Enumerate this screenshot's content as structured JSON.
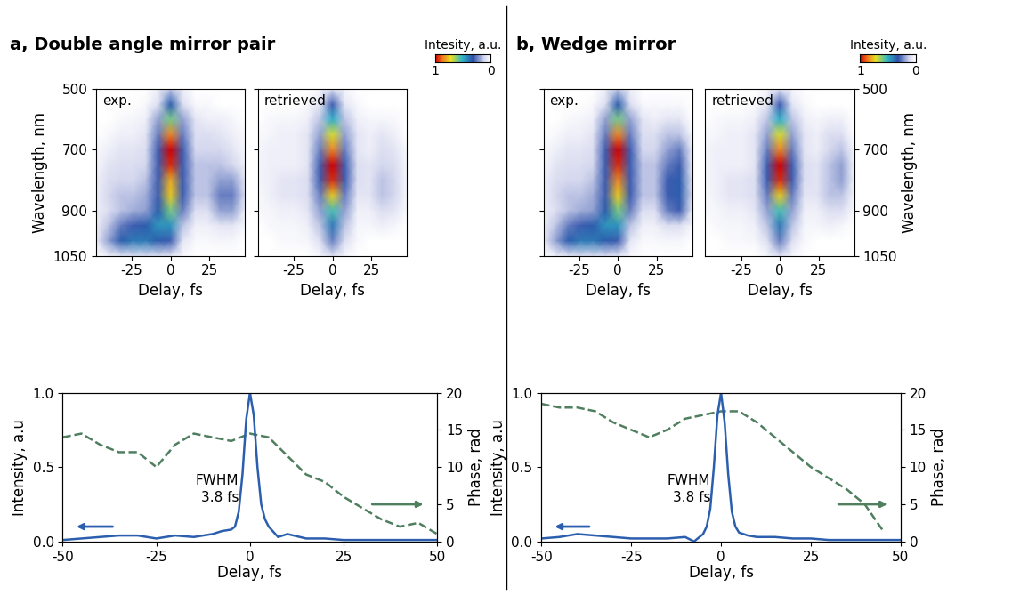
{
  "chart_data": [
    {
      "type": "heatmap",
      "panel": "a, Double angle mirror pair",
      "annotation": "exp.",
      "xlabel": "Delay, fs",
      "ylabel": "Wavelength, nm",
      "x": [
        -48,
        -40,
        -32,
        -24,
        -16,
        -8,
        0,
        8,
        16,
        24,
        32,
        40,
        48
      ],
      "y": [
        500,
        550,
        600,
        650,
        700,
        750,
        800,
        850,
        900,
        950,
        1000,
        1050
      ],
      "xlim": [
        -48,
        48
      ],
      "ylim": [
        1050,
        500
      ],
      "xticks": [
        -25,
        0,
        25
      ],
      "yticks": [
        500,
        700,
        900,
        1050
      ],
      "colorbar_range": [
        1,
        0
      ],
      "values": [
        [
          0,
          0,
          0,
          0,
          0,
          0.05,
          0.15,
          0.05,
          0,
          0,
          0,
          0,
          0
        ],
        [
          0,
          0,
          0,
          0,
          0.02,
          0.1,
          0.35,
          0.1,
          0.02,
          0.02,
          0,
          0,
          0
        ],
        [
          0,
          0,
          0.02,
          0.03,
          0.05,
          0.2,
          0.6,
          0.2,
          0.08,
          0.05,
          0.05,
          0.03,
          0
        ],
        [
          0,
          0.02,
          0.05,
          0.05,
          0.08,
          0.25,
          0.85,
          0.25,
          0.1,
          0.1,
          0.08,
          0.05,
          0.02
        ],
        [
          0.02,
          0.05,
          0.08,
          0.08,
          0.1,
          0.3,
          1.0,
          0.3,
          0.12,
          0.12,
          0.12,
          0.08,
          0.03
        ],
        [
          0.03,
          0.08,
          0.1,
          0.1,
          0.12,
          0.3,
          0.95,
          0.3,
          0.15,
          0.15,
          0.15,
          0.12,
          0.05
        ],
        [
          0.05,
          0.1,
          0.12,
          0.12,
          0.15,
          0.3,
          0.8,
          0.3,
          0.15,
          0.15,
          0.2,
          0.2,
          0.08
        ],
        [
          0.05,
          0.12,
          0.15,
          0.15,
          0.18,
          0.3,
          0.75,
          0.3,
          0.15,
          0.15,
          0.25,
          0.25,
          0.1
        ],
        [
          0.05,
          0.1,
          0.15,
          0.18,
          0.2,
          0.35,
          0.6,
          0.25,
          0.1,
          0.1,
          0.2,
          0.2,
          0.05
        ],
        [
          0.05,
          0.15,
          0.25,
          0.3,
          0.35,
          0.45,
          0.45,
          0.15,
          0.05,
          0.05,
          0.08,
          0.08,
          0.03
        ],
        [
          0.05,
          0.2,
          0.35,
          0.4,
          0.4,
          0.35,
          0.3,
          0.08,
          0.02,
          0.02,
          0.03,
          0.03,
          0
        ],
        [
          0,
          0.05,
          0.08,
          0.1,
          0.1,
          0.1,
          0.08,
          0.02,
          0,
          0,
          0,
          0,
          0
        ]
      ]
    },
    {
      "type": "heatmap",
      "annotation": "retrieved",
      "tick_labels": "x",
      "xlabel": "Delay, fs",
      "x": [
        -48,
        -40,
        -32,
        -24,
        -16,
        -8,
        0,
        8,
        16,
        24,
        32,
        40,
        48
      ],
      "y": [
        500,
        550,
        600,
        650,
        700,
        750,
        800,
        850,
        900,
        950,
        1000,
        1050
      ],
      "xlim": [
        -48,
        48
      ],
      "ylim": [
        1050,
        500
      ],
      "xticks": [
        -25,
        0,
        25
      ],
      "yticks": [
        500,
        700,
        900,
        1050
      ],
      "colorbar_range": [
        1,
        0
      ],
      "colorbar_ticks": [
        1,
        0
      ],
      "colorbar_label": "Intesity, a.u.",
      "values": [
        [
          0,
          0,
          0,
          0,
          0,
          0.03,
          0.1,
          0.03,
          0,
          0,
          0,
          0,
          0
        ],
        [
          0,
          0,
          0,
          0,
          0.02,
          0.08,
          0.3,
          0.08,
          0.02,
          0,
          0,
          0,
          0
        ],
        [
          0,
          0.02,
          0.03,
          0.03,
          0.05,
          0.15,
          0.5,
          0.15,
          0.05,
          0.03,
          0.03,
          0.02,
          0
        ],
        [
          0.02,
          0.03,
          0.05,
          0.05,
          0.08,
          0.2,
          0.7,
          0.2,
          0.08,
          0.05,
          0.08,
          0.05,
          0
        ],
        [
          0.03,
          0.05,
          0.05,
          0.05,
          0.08,
          0.25,
          0.85,
          0.25,
          0.08,
          0.05,
          0.1,
          0.08,
          0.02
        ],
        [
          0.03,
          0.05,
          0.05,
          0.05,
          0.08,
          0.3,
          1.0,
          0.3,
          0.1,
          0.08,
          0.12,
          0.1,
          0.03
        ],
        [
          0.03,
          0.05,
          0.08,
          0.08,
          0.1,
          0.3,
          0.95,
          0.3,
          0.1,
          0.08,
          0.15,
          0.12,
          0.03
        ],
        [
          0.02,
          0.05,
          0.08,
          0.08,
          0.1,
          0.25,
          0.75,
          0.25,
          0.08,
          0.08,
          0.15,
          0.12,
          0.03
        ],
        [
          0.02,
          0.03,
          0.05,
          0.05,
          0.08,
          0.2,
          0.55,
          0.2,
          0.05,
          0.05,
          0.1,
          0.08,
          0.02
        ],
        [
          0,
          0.02,
          0.03,
          0.03,
          0.05,
          0.15,
          0.4,
          0.15,
          0.03,
          0.03,
          0.05,
          0.03,
          0
        ],
        [
          0,
          0,
          0.02,
          0.02,
          0.03,
          0.1,
          0.25,
          0.1,
          0.02,
          0,
          0,
          0,
          0
        ],
        [
          0,
          0,
          0,
          0,
          0,
          0.03,
          0.1,
          0.03,
          0,
          0,
          0,
          0,
          0
        ]
      ]
    },
    {
      "type": "line",
      "xlabel": "Delay, fs",
      "ylabel": "Intensity, a.u",
      "y2label": "Phase, rad",
      "annotation": "FWHM\n3.8 fs",
      "xlim": [
        -50,
        50
      ],
      "xticks": [
        -50,
        -25,
        0,
        25,
        50
      ],
      "ylim": [
        0,
        1
      ],
      "yticks": [
        {
          "value": 0,
          "label": "0.0"
        },
        0.5,
        {
          "value": 1,
          "label": "1.0"
        }
      ],
      "y2lim": [
        0,
        20
      ],
      "y2ticks": [
        0,
        5,
        10,
        15,
        20
      ],
      "series": [
        {
          "color": "#2b5fae",
          "line_style": "solid",
          "x": [
            -50,
            -45,
            -40,
            -35,
            -30,
            -25,
            -20,
            -15,
            -10,
            -7.5,
            -5,
            -4,
            -3,
            -2,
            -1,
            0,
            1,
            2,
            3,
            4,
            5,
            7.5,
            10,
            15,
            20,
            25,
            30,
            35,
            40,
            45,
            50
          ],
          "values": [
            0.01,
            0.02,
            0.03,
            0.04,
            0.04,
            0.02,
            0.04,
            0.03,
            0.05,
            0.07,
            0.08,
            0.1,
            0.2,
            0.45,
            0.82,
            1.0,
            0.85,
            0.5,
            0.25,
            0.15,
            0.1,
            0.03,
            0.05,
            0.02,
            0.02,
            0.01,
            0.01,
            0.01,
            0.01,
            0.01,
            0.01
          ]
        },
        {
          "color": "#4f7f5f",
          "line_style": "dashed",
          "axis": "y2",
          "x": [
            -50,
            -45,
            -40,
            -35,
            -30,
            -25,
            -20,
            -15,
            -10,
            -5,
            0,
            5,
            10,
            15,
            20,
            25,
            30,
            35,
            40,
            45,
            50
          ],
          "values": [
            14,
            14.5,
            13,
            12,
            12,
            10,
            13,
            14.5,
            14,
            13.5,
            14.5,
            14,
            11.5,
            9,
            8,
            6,
            4.5,
            3,
            2,
            2.5,
            1
          ]
        }
      ]
    },
    {
      "type": "heatmap",
      "panel": "b, Wedge mirror",
      "annotation": "exp.",
      "tick_labels": "x",
      "xlabel": "Delay, fs",
      "x": [
        -48,
        -40,
        -32,
        -24,
        -16,
        -8,
        0,
        8,
        16,
        24,
        32,
        40,
        48
      ],
      "y": [
        500,
        550,
        600,
        650,
        700,
        750,
        800,
        850,
        900,
        950,
        1000,
        1050
      ],
      "xlim": [
        -48,
        48
      ],
      "ylim": [
        1050,
        500
      ],
      "xticks": [
        -25,
        0,
        25
      ],
      "yticks": [
        500,
        700,
        900,
        1050
      ],
      "colorbar_range": [
        1,
        0
      ],
      "values": [
        [
          0,
          0,
          0,
          0,
          0,
          0.05,
          0.15,
          0.05,
          0,
          0,
          0,
          0,
          0
        ],
        [
          0,
          0,
          0,
          0,
          0.02,
          0.1,
          0.35,
          0.1,
          0.02,
          0.02,
          0.02,
          0.02,
          0
        ],
        [
          0,
          0,
          0.02,
          0.03,
          0.05,
          0.2,
          0.6,
          0.2,
          0.08,
          0.05,
          0.08,
          0.08,
          0
        ],
        [
          0,
          0.02,
          0.05,
          0.05,
          0.08,
          0.25,
          0.85,
          0.25,
          0.1,
          0.1,
          0.15,
          0.15,
          0.02
        ],
        [
          0.02,
          0.05,
          0.08,
          0.08,
          0.1,
          0.3,
          1.0,
          0.3,
          0.12,
          0.12,
          0.2,
          0.25,
          0.05
        ],
        [
          0.03,
          0.08,
          0.1,
          0.1,
          0.12,
          0.3,
          0.95,
          0.3,
          0.15,
          0.15,
          0.25,
          0.3,
          0.05
        ],
        [
          0.05,
          0.1,
          0.12,
          0.12,
          0.15,
          0.3,
          0.85,
          0.3,
          0.15,
          0.15,
          0.3,
          0.35,
          0.08
        ],
        [
          0.05,
          0.12,
          0.15,
          0.15,
          0.18,
          0.3,
          0.75,
          0.3,
          0.15,
          0.15,
          0.3,
          0.35,
          0.1
        ],
        [
          0.05,
          0.1,
          0.15,
          0.18,
          0.2,
          0.35,
          0.6,
          0.25,
          0.1,
          0.1,
          0.25,
          0.3,
          0.05
        ],
        [
          0.05,
          0.15,
          0.25,
          0.3,
          0.35,
          0.45,
          0.45,
          0.15,
          0.05,
          0.05,
          0.1,
          0.1,
          0.03
        ],
        [
          0.05,
          0.2,
          0.35,
          0.4,
          0.4,
          0.35,
          0.3,
          0.08,
          0.02,
          0.02,
          0.03,
          0.03,
          0
        ],
        [
          0,
          0.05,
          0.08,
          0.1,
          0.1,
          0.1,
          0.08,
          0.02,
          0,
          0,
          0,
          0,
          0
        ]
      ]
    },
    {
      "type": "heatmap",
      "annotation": "retrieved",
      "xlabel": "Delay, fs",
      "ylabel": "Wavelength, nm",
      "x": [
        -48,
        -40,
        -32,
        -24,
        -16,
        -8,
        0,
        8,
        16,
        24,
        32,
        40,
        48
      ],
      "y": [
        500,
        550,
        600,
        650,
        700,
        750,
        800,
        850,
        900,
        950,
        1000,
        1050
      ],
      "xlim": [
        -48,
        48
      ],
      "ylim": [
        1050,
        500
      ],
      "xticks": [
        -25,
        0,
        25
      ],
      "yticks": [
        500,
        700,
        900,
        1050
      ],
      "colorbar_range": [
        1,
        0
      ],
      "colorbar_ticks": [
        1,
        0
      ],
      "colorbar_label": "Intesity, a.u.",
      "values": [
        [
          0,
          0,
          0,
          0,
          0,
          0.03,
          0.1,
          0.03,
          0,
          0,
          0,
          0,
          0
        ],
        [
          0,
          0,
          0,
          0,
          0.02,
          0.08,
          0.3,
          0.08,
          0.02,
          0,
          0,
          0,
          0
        ],
        [
          0,
          0.02,
          0.03,
          0.03,
          0.05,
          0.15,
          0.5,
          0.15,
          0.05,
          0.03,
          0.05,
          0.05,
          0
        ],
        [
          0.02,
          0.03,
          0.05,
          0.05,
          0.08,
          0.2,
          0.7,
          0.2,
          0.08,
          0.05,
          0.1,
          0.1,
          0
        ],
        [
          0.03,
          0.05,
          0.05,
          0.05,
          0.08,
          0.25,
          0.85,
          0.25,
          0.08,
          0.05,
          0.12,
          0.15,
          0.02
        ],
        [
          0.03,
          0.05,
          0.05,
          0.05,
          0.08,
          0.3,
          1.0,
          0.3,
          0.1,
          0.08,
          0.15,
          0.2,
          0.03
        ],
        [
          0.03,
          0.05,
          0.08,
          0.08,
          0.1,
          0.3,
          0.95,
          0.3,
          0.1,
          0.08,
          0.15,
          0.2,
          0.03
        ],
        [
          0.02,
          0.05,
          0.08,
          0.08,
          0.1,
          0.25,
          0.75,
          0.25,
          0.08,
          0.08,
          0.15,
          0.15,
          0.03
        ],
        [
          0.02,
          0.03,
          0.05,
          0.05,
          0.08,
          0.2,
          0.55,
          0.2,
          0.05,
          0.05,
          0.1,
          0.1,
          0.02
        ],
        [
          0,
          0.02,
          0.03,
          0.03,
          0.05,
          0.15,
          0.4,
          0.15,
          0.03,
          0.03,
          0.05,
          0.03,
          0
        ],
        [
          0,
          0,
          0.02,
          0.02,
          0.03,
          0.1,
          0.25,
          0.1,
          0.02,
          0,
          0,
          0,
          0
        ],
        [
          0,
          0,
          0,
          0,
          0,
          0.03,
          0.1,
          0.03,
          0,
          0,
          0,
          0,
          0
        ]
      ]
    },
    {
      "type": "line",
      "xlabel": "Delay, fs",
      "ylabel": "Intensity, a.u",
      "y2label": "Phase, rad",
      "annotation": "FWHM\n3.8 fs",
      "xlim": [
        -50,
        50
      ],
      "xticks": [
        -50,
        -25,
        0,
        25,
        50
      ],
      "ylim": [
        0,
        1
      ],
      "yticks": [
        {
          "value": 0,
          "label": "0.0"
        },
        0.5,
        {
          "value": 1,
          "label": "1.0"
        }
      ],
      "y2lim": [
        0,
        20
      ],
      "y2ticks": [
        0,
        5,
        10,
        15,
        20
      ],
      "series": [
        {
          "color": "#2b5fae",
          "line_style": "solid",
          "x": [
            -50,
            -45,
            -40,
            -35,
            -30,
            -25,
            -20,
            -15,
            -10,
            -7.5,
            -5,
            -4,
            -3,
            -2,
            -1,
            0,
            1,
            2,
            3,
            4,
            5,
            7.5,
            10,
            15,
            20,
            25,
            30,
            35,
            40,
            45,
            50
          ],
          "values": [
            0.02,
            0.03,
            0.05,
            0.04,
            0.03,
            0.02,
            0.02,
            0.02,
            0.03,
            0.0,
            0.05,
            0.1,
            0.22,
            0.5,
            0.85,
            1.0,
            0.8,
            0.45,
            0.2,
            0.1,
            0.06,
            0.04,
            0.03,
            0.03,
            0.02,
            0.02,
            0.01,
            0.01,
            0.01,
            0.01,
            0.01
          ]
        },
        {
          "color": "#4f7f5f",
          "line_style": "dashed",
          "axis": "y2",
          "x": [
            -50,
            -45,
            -40,
            -35,
            -30,
            -25,
            -20,
            -15,
            -10,
            -5,
            0,
            5,
            10,
            15,
            20,
            25,
            30,
            35,
            40,
            45
          ],
          "values": [
            18.5,
            18,
            18,
            17.5,
            16,
            15,
            14,
            15,
            16.5,
            17,
            17.5,
            17.5,
            16,
            14,
            12,
            10,
            8.5,
            7,
            5,
            1.5
          ]
        }
      ]
    }
  ]
}
